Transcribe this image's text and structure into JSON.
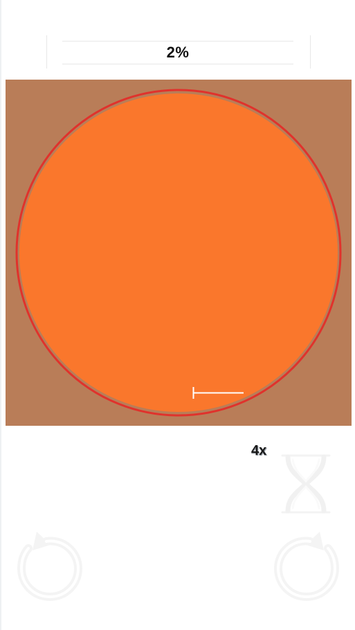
{
  "progress": {
    "label": "2%",
    "value_percent": 2
  },
  "canvas": {
    "background_color": "#B97D58",
    "target_circle_color": "#FA772C",
    "guide_ring_color": "#E0322C",
    "marker_color": "#FFFFFF"
  },
  "controls": {
    "speed_label": "4x",
    "hourglass_icon": "hourglass-icon",
    "undo_icon": "undo-icon",
    "redo_icon": "redo-icon"
  }
}
